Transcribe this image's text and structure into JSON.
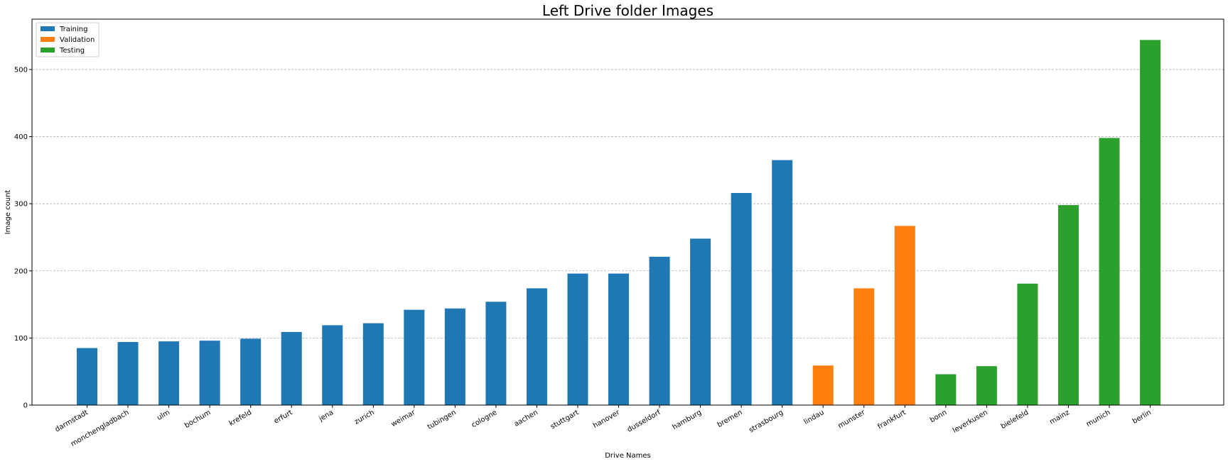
{
  "chart_data": {
    "type": "bar",
    "title": "Left Drive folder Images",
    "xlabel": "Drive Names",
    "ylabel": "Image count",
    "ylim": [
      0,
      575
    ],
    "yticks": [
      0,
      100,
      200,
      300,
      400,
      500
    ],
    "grid": "y-dashed",
    "legend_position": "top-left",
    "categories": [
      "darmstadt",
      "monchengladbach",
      "ulm",
      "bochum",
      "krefeld",
      "erfurt",
      "jena",
      "zurich",
      "weimar",
      "tubingen",
      "cologne",
      "aachen",
      "stuttgart",
      "hanover",
      "dusseldorf",
      "hamburg",
      "bremen",
      "strasbourg",
      "lindau",
      "munster",
      "frankfurt",
      "bonn",
      "leverkusen",
      "bielefeld",
      "mainz",
      "munich",
      "berlin"
    ],
    "values": [
      85,
      94,
      95,
      96,
      99,
      109,
      119,
      122,
      142,
      144,
      154,
      174,
      196,
      196,
      221,
      248,
      316,
      365,
      59,
      174,
      267,
      46,
      58,
      181,
      298,
      398,
      544
    ],
    "groups": [
      "Training",
      "Training",
      "Training",
      "Training",
      "Training",
      "Training",
      "Training",
      "Training",
      "Training",
      "Training",
      "Training",
      "Training",
      "Training",
      "Training",
      "Training",
      "Training",
      "Training",
      "Training",
      "Validation",
      "Validation",
      "Validation",
      "Testing",
      "Testing",
      "Testing",
      "Testing",
      "Testing",
      "Testing"
    ],
    "series": [
      {
        "name": "Training",
        "color": "#1f77b4"
      },
      {
        "name": "Validation",
        "color": "#ff7f0e"
      },
      {
        "name": "Testing",
        "color": "#2ca02c"
      }
    ]
  }
}
